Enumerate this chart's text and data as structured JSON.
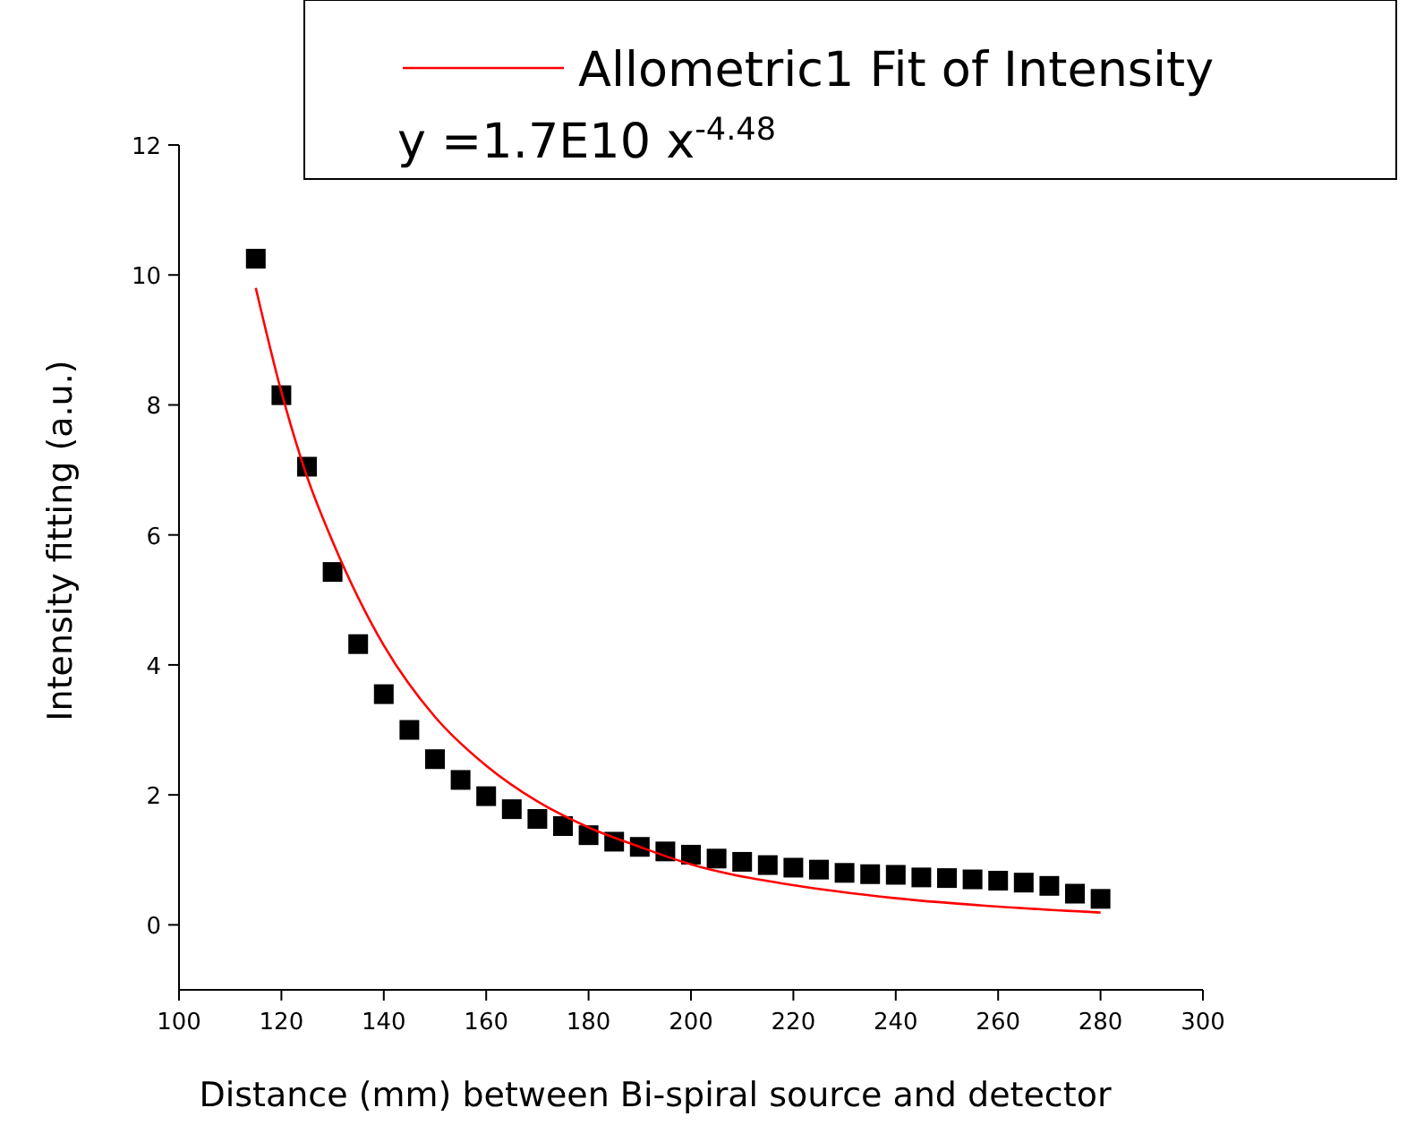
{
  "chart_data": {
    "type": "scatter",
    "xlabel": "Distance (mm) between Bi-spiral source and detector",
    "ylabel": "Intensity fitting (a.u.)",
    "xlim": [
      100,
      300
    ],
    "xticks": [
      100,
      120,
      140,
      160,
      180,
      200,
      220,
      240,
      260,
      280,
      300
    ],
    "ylim": [
      -1,
      12
    ],
    "yticks": [
      0,
      2,
      4,
      6,
      8,
      10,
      12
    ],
    "grid": false,
    "legend": "top right",
    "marker": "square",
    "annotations": [
      "y =1.7E10 x$^{-4.48}$"
    ],
    "x": [
      115,
      120,
      125,
      130,
      135,
      140,
      145,
      150,
      155,
      160,
      165,
      170,
      175,
      180,
      185,
      190,
      195,
      200,
      205,
      210,
      215,
      220,
      225,
      230,
      235,
      240,
      245,
      250,
      255,
      260,
      265,
      270,
      275,
      280
    ],
    "series": [
      {
        "color": "#000000",
        "values": [
          10.25,
          8.15,
          7.05,
          5.43,
          4.32,
          3.55,
          3.0,
          2.55,
          2.23,
          1.98,
          1.78,
          1.63,
          1.52,
          1.38,
          1.28,
          1.2,
          1.13,
          1.08,
          1.02,
          0.97,
          0.92,
          0.88,
          0.85,
          0.8,
          0.78,
          0.77,
          0.73,
          0.72,
          0.7,
          0.68,
          0.65,
          0.6,
          0.48,
          0.4
        ]
      },
      {
        "type": "line",
        "name": "Allometric1 Fit of Intensity",
        "color": "#ff0000",
        "line_style": "solid",
        "marker": "none",
        "x": [
          115,
          120,
          125,
          130,
          140,
          150,
          160,
          170,
          180,
          190,
          200,
          220,
          240,
          260,
          280
        ],
        "values": [
          9.8,
          8.2,
          6.9,
          5.9,
          4.3,
          3.2,
          2.45,
          1.9,
          1.5,
          1.2,
          0.93,
          0.61,
          0.41,
          0.28,
          0.19
        ]
      }
    ]
  }
}
